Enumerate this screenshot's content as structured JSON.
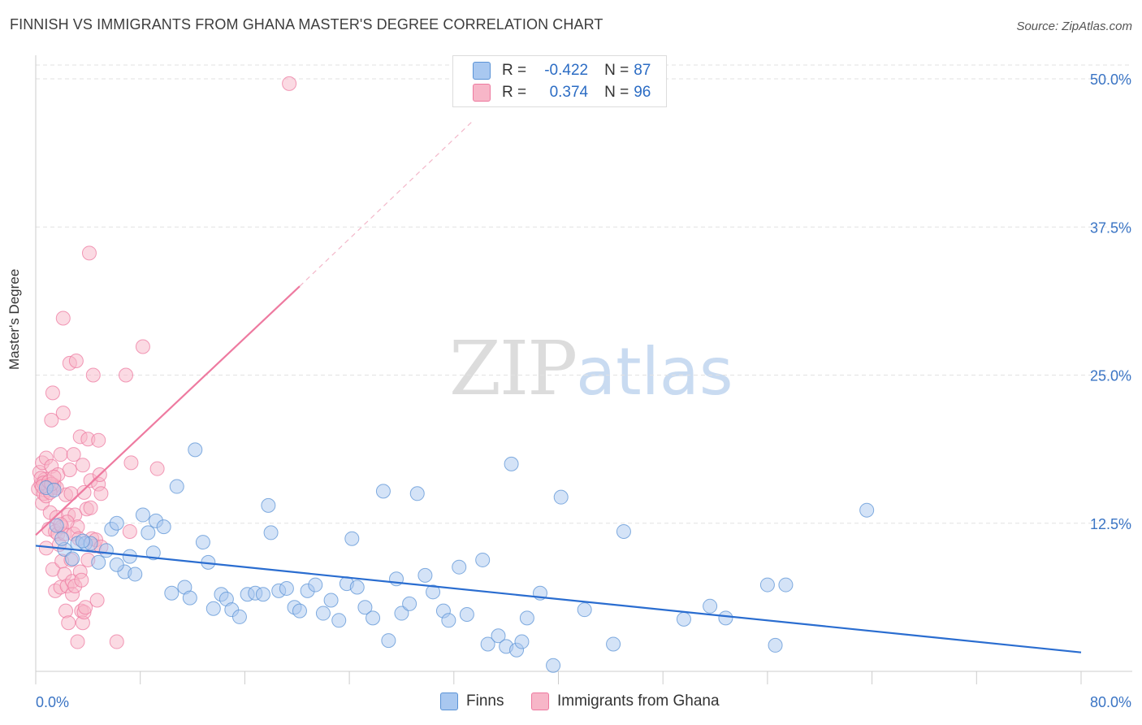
{
  "title": "FINNISH VS IMMIGRANTS FROM GHANA MASTER'S DEGREE CORRELATION CHART",
  "source": "Source: ZipAtlas.com",
  "watermark": {
    "zip": "ZIP",
    "atlas": "atlas"
  },
  "legend": {
    "series": [
      {
        "swatch_color": "#a9c8f0",
        "r_label": "R =",
        "r_value": "-0.422",
        "n_label": "N =",
        "n_value": "87"
      },
      {
        "swatch_color": "#f7b6c8",
        "r_label": "R =",
        "r_value": "0.374",
        "n_label": "N =",
        "n_value": "96"
      }
    ]
  },
  "bottom_legend": [
    {
      "label": "Finns",
      "color": "#a9c8f0"
    },
    {
      "label": "Immigrants from Ghana",
      "color": "#f7b6c8"
    }
  ],
  "chart_data": {
    "type": "scatter",
    "ylabel": "Master's Degree",
    "xlim": [
      0,
      80
    ],
    "ylim": [
      0,
      50
    ],
    "x_tick_labels": [
      "0.0%",
      "80.0%"
    ],
    "y_tick_labels": [
      "12.5%",
      "25.0%",
      "37.5%",
      "50.0%"
    ],
    "y_ticks": [
      12.5,
      25.0,
      37.5,
      50.0
    ],
    "grid": true,
    "series": [
      {
        "name": "Finns",
        "color": "#5b93d6",
        "fill": "#a9c8f0",
        "trend": {
          "x": [
            0,
            80
          ],
          "y": [
            10.6,
            1.6
          ],
          "dashed_extension": false
        },
        "points": [
          [
            0.8,
            15.5
          ],
          [
            1.4,
            15.3
          ],
          [
            1.6,
            12.3
          ],
          [
            2.2,
            10.3
          ],
          [
            2.8,
            9.5
          ],
          [
            3.2,
            10.8
          ],
          [
            3.8,
            10.8
          ],
          [
            4.2,
            10.8
          ],
          [
            4.8,
            9.2
          ],
          [
            5.4,
            10.2
          ],
          [
            5.8,
            12.0
          ],
          [
            6.2,
            12.5
          ],
          [
            6.8,
            8.4
          ],
          [
            7.2,
            9.7
          ],
          [
            7.6,
            8.2
          ],
          [
            8.2,
            13.2
          ],
          [
            8.6,
            11.7
          ],
          [
            9.2,
            12.7
          ],
          [
            9.8,
            12.2
          ],
          [
            10.4,
            6.6
          ],
          [
            10.8,
            15.6
          ],
          [
            11.4,
            7.1
          ],
          [
            11.8,
            6.2
          ],
          [
            12.2,
            18.7
          ],
          [
            12.8,
            10.9
          ],
          [
            13.2,
            9.2
          ],
          [
            13.6,
            5.3
          ],
          [
            14.2,
            6.5
          ],
          [
            14.6,
            6.1
          ],
          [
            15.0,
            5.2
          ],
          [
            15.6,
            4.6
          ],
          [
            16.2,
            6.5
          ],
          [
            16.8,
            6.6
          ],
          [
            17.4,
            6.5
          ],
          [
            17.8,
            14.0
          ],
          [
            18.0,
            11.7
          ],
          [
            18.6,
            6.8
          ],
          [
            19.2,
            7.0
          ],
          [
            19.8,
            5.4
          ],
          [
            20.2,
            5.1
          ],
          [
            20.8,
            6.8
          ],
          [
            21.4,
            7.3
          ],
          [
            22.0,
            4.9
          ],
          [
            22.6,
            6.0
          ],
          [
            23.2,
            4.3
          ],
          [
            23.8,
            7.4
          ],
          [
            24.2,
            11.2
          ],
          [
            24.6,
            7.1
          ],
          [
            25.2,
            5.4
          ],
          [
            25.8,
            4.5
          ],
          [
            26.6,
            15.2
          ],
          [
            27.0,
            2.6
          ],
          [
            27.6,
            7.8
          ],
          [
            28.0,
            4.9
          ],
          [
            28.6,
            5.7
          ],
          [
            29.2,
            15.0
          ],
          [
            29.8,
            8.1
          ],
          [
            30.4,
            6.7
          ],
          [
            31.2,
            5.1
          ],
          [
            31.6,
            4.3
          ],
          [
            32.4,
            8.8
          ],
          [
            33.0,
            4.8
          ],
          [
            34.2,
            9.4
          ],
          [
            34.6,
            2.3
          ],
          [
            35.4,
            3.0
          ],
          [
            36.0,
            2.1
          ],
          [
            36.4,
            17.5
          ],
          [
            36.8,
            1.8
          ],
          [
            37.2,
            2.5
          ],
          [
            37.6,
            4.5
          ],
          [
            38.6,
            6.6
          ],
          [
            39.6,
            0.5
          ],
          [
            40.2,
            14.7
          ],
          [
            42.0,
            5.2
          ],
          [
            44.2,
            2.3
          ],
          [
            45.0,
            11.8
          ],
          [
            49.6,
            4.4
          ],
          [
            51.6,
            5.5
          ],
          [
            52.8,
            4.5
          ],
          [
            56.0,
            7.3
          ],
          [
            56.6,
            2.2
          ],
          [
            57.4,
            7.3
          ],
          [
            63.6,
            13.6
          ],
          [
            2.0,
            11.2
          ],
          [
            3.6,
            11.0
          ],
          [
            6.2,
            9.0
          ],
          [
            9.0,
            10.0
          ]
        ]
      },
      {
        "name": "Immigrants from Ghana",
        "color": "#ee7aa0",
        "fill": "#f7b6c8",
        "trend": {
          "x": [
            0,
            20.2,
            33.5
          ],
          "y": [
            11.5,
            32.5,
            46.5
          ],
          "dashed_extension": true
        },
        "points": [
          [
            0.2,
            15.4
          ],
          [
            0.3,
            16.8
          ],
          [
            0.4,
            15.8
          ],
          [
            0.5,
            14.2
          ],
          [
            0.5,
            17.6
          ],
          [
            0.6,
            15.0
          ],
          [
            0.7,
            16.2
          ],
          [
            0.8,
            18.0
          ],
          [
            0.8,
            10.4
          ],
          [
            0.9,
            15.6
          ],
          [
            1.0,
            12.0
          ],
          [
            1.0,
            15.3
          ],
          [
            1.1,
            13.4
          ],
          [
            1.2,
            17.3
          ],
          [
            1.2,
            21.2
          ],
          [
            1.3,
            23.5
          ],
          [
            1.3,
            8.6
          ],
          [
            1.4,
            15.7
          ],
          [
            1.5,
            11.8
          ],
          [
            1.5,
            6.8
          ],
          [
            1.6,
            13.0
          ],
          [
            1.7,
            16.6
          ],
          [
            1.7,
            11.6
          ],
          [
            1.8,
            10.7
          ],
          [
            1.9,
            18.3
          ],
          [
            1.9,
            7.1
          ],
          [
            2.0,
            12.2
          ],
          [
            2.0,
            9.3
          ],
          [
            2.1,
            21.8
          ],
          [
            2.1,
            29.8
          ],
          [
            2.2,
            11.6
          ],
          [
            2.2,
            8.2
          ],
          [
            2.3,
            14.9
          ],
          [
            2.3,
            5.1
          ],
          [
            2.4,
            7.2
          ],
          [
            2.5,
            4.1
          ],
          [
            2.5,
            13.2
          ],
          [
            2.6,
            17.0
          ],
          [
            2.6,
            26.0
          ],
          [
            2.7,
            15.0
          ],
          [
            2.8,
            7.6
          ],
          [
            2.8,
            6.5
          ],
          [
            2.9,
            18.3
          ],
          [
            2.9,
            11.6
          ],
          [
            3.0,
            7.2
          ],
          [
            3.0,
            13.2
          ],
          [
            3.1,
            26.2
          ],
          [
            3.2,
            2.5
          ],
          [
            3.2,
            12.2
          ],
          [
            3.3,
            11.2
          ],
          [
            3.4,
            19.8
          ],
          [
            3.4,
            8.4
          ],
          [
            3.5,
            5.1
          ],
          [
            3.5,
            7.7
          ],
          [
            3.6,
            4.1
          ],
          [
            3.6,
            17.4
          ],
          [
            3.7,
            5.0
          ],
          [
            3.8,
            5.4
          ],
          [
            3.9,
            13.7
          ],
          [
            4.0,
            19.6
          ],
          [
            4.0,
            9.4
          ],
          [
            4.1,
            35.3
          ],
          [
            4.2,
            13.8
          ],
          [
            4.2,
            16.1
          ],
          [
            4.3,
            11.2
          ],
          [
            4.4,
            25.0
          ],
          [
            4.5,
            10.6
          ],
          [
            4.6,
            11.1
          ],
          [
            4.7,
            6.0
          ],
          [
            4.8,
            19.5
          ],
          [
            4.8,
            15.8
          ],
          [
            4.9,
            16.6
          ],
          [
            5.0,
            10.5
          ],
          [
            5.0,
            15.0
          ],
          [
            6.2,
            2.5
          ],
          [
            6.9,
            25.0
          ],
          [
            7.2,
            11.8
          ],
          [
            7.3,
            17.6
          ],
          [
            8.2,
            27.4
          ],
          [
            9.3,
            17.1
          ],
          [
            19.4,
            49.6
          ],
          [
            0.4,
            16.3
          ],
          [
            0.9,
            15.7
          ],
          [
            1.3,
            15.5
          ],
          [
            1.6,
            15.5
          ],
          [
            0.6,
            15.9
          ],
          [
            0.8,
            14.8
          ],
          [
            1.1,
            15.1
          ],
          [
            2.4,
            12.6
          ],
          [
            3.7,
            15.1
          ],
          [
            1.9,
            12.4
          ],
          [
            2.7,
            9.4
          ],
          [
            0.5,
            15.6
          ],
          [
            1.0,
            16.0
          ],
          [
            1.2,
            15.8
          ],
          [
            1.4,
            16.4
          ]
        ]
      }
    ]
  }
}
